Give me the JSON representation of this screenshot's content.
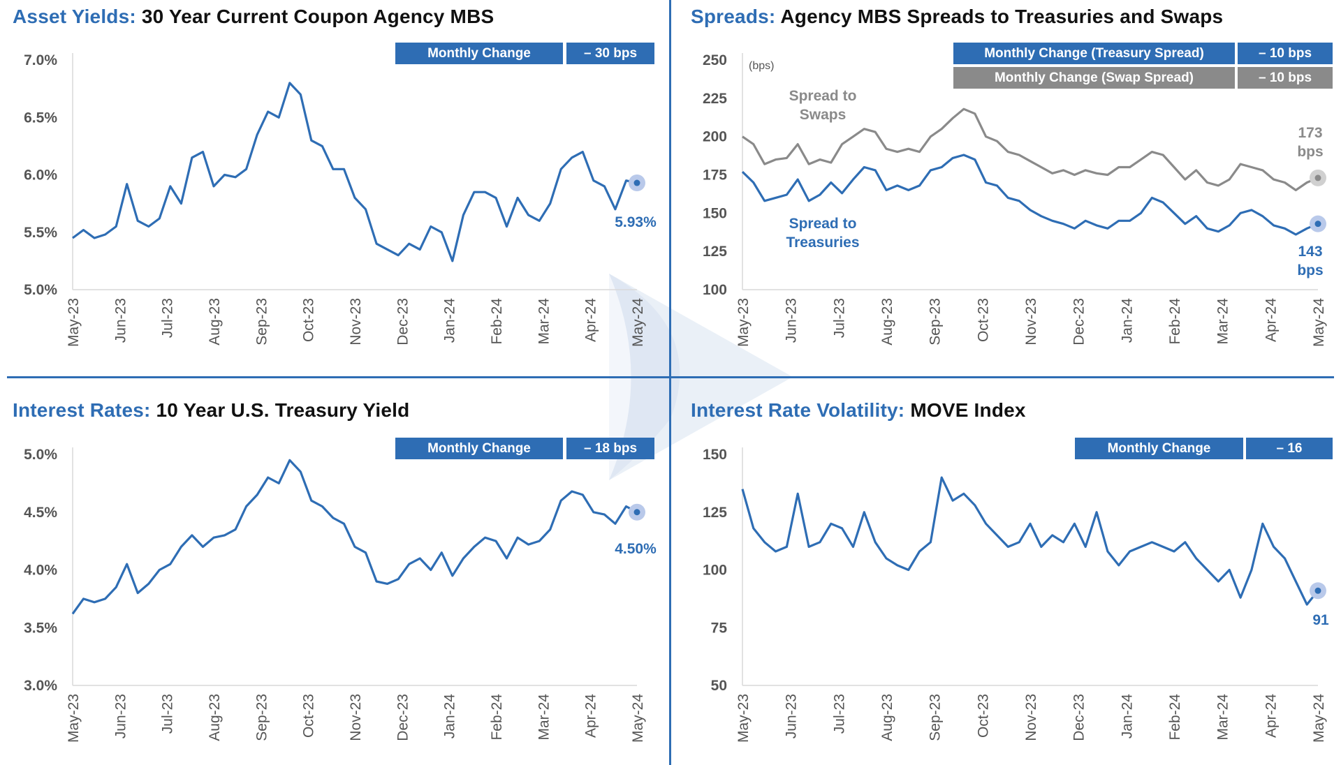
{
  "colors": {
    "accent": "#2E6DB4",
    "gray": "#8A8A8A",
    "tick_text": "#555555",
    "marker_halo_blue": "#B9C9EA",
    "marker_halo_gray": "#D0D0D0"
  },
  "dates": [
    "2023-05-19",
    "2023-05-26",
    "2023-06-02",
    "2023-06-09",
    "2023-06-16",
    "2023-06-23",
    "2023-06-30",
    "2023-07-07",
    "2023-07-14",
    "2023-07-21",
    "2023-07-28",
    "2023-08-04",
    "2023-08-11",
    "2023-08-18",
    "2023-08-25",
    "2023-09-01",
    "2023-09-08",
    "2023-09-15",
    "2023-09-22",
    "2023-09-29",
    "2023-10-06",
    "2023-10-13",
    "2023-10-20",
    "2023-10-27",
    "2023-11-03",
    "2023-11-10",
    "2023-11-17",
    "2023-11-24",
    "2023-12-01",
    "2023-12-08",
    "2023-12-15",
    "2023-12-22",
    "2023-12-29",
    "2024-01-05",
    "2024-01-12",
    "2024-01-19",
    "2024-01-26",
    "2024-02-02",
    "2024-02-09",
    "2024-02-16",
    "2024-02-23",
    "2024-03-01",
    "2024-03-08",
    "2024-03-15",
    "2024-03-22",
    "2024-03-29",
    "2024-04-05",
    "2024-04-12",
    "2024-04-19",
    "2024-04-26",
    "2024-05-03",
    "2024-05-10",
    "2024-05-17"
  ],
  "x_tick_labels": [
    "May-23",
    "Jun-23",
    "Jul-23",
    "Aug-23",
    "Sep-23",
    "Oct-23",
    "Nov-23",
    "Dec-23",
    "Jan-24",
    "Feb-24",
    "Mar-24",
    "Apr-24",
    "May-24"
  ],
  "chart_data": [
    {
      "type": "line",
      "title_highlight": "Asset Yields:",
      "title": "30 Year Current Coupon Agency MBS",
      "monthly_change": {
        "label": "Monthly Change",
        "value": "– 30 bps"
      },
      "ylim": [
        5.0,
        7.0
      ],
      "y_ticks": [
        "5.0%",
        "5.5%",
        "6.0%",
        "6.5%",
        "7.0%"
      ],
      "y_tick_values": [
        5.0,
        5.5,
        6.0,
        6.5,
        7.0
      ],
      "grid": false,
      "series": [
        {
          "color": "#2E6DB4",
          "end_label": "5.93%",
          "values": [
            5.45,
            5.52,
            5.45,
            5.48,
            5.55,
            5.92,
            5.6,
            5.55,
            5.62,
            5.9,
            5.75,
            6.15,
            6.2,
            5.9,
            6.0,
            5.98,
            6.05,
            6.35,
            6.55,
            6.5,
            6.8,
            6.7,
            6.3,
            6.25,
            6.05,
            6.05,
            5.8,
            5.7,
            5.4,
            5.35,
            5.3,
            5.4,
            5.35,
            5.55,
            5.5,
            5.25,
            5.65,
            5.85,
            5.85,
            5.8,
            5.55,
            5.8,
            5.65,
            5.6,
            5.75,
            6.05,
            6.15,
            6.2,
            5.95,
            5.9,
            5.7,
            5.95,
            5.93
          ]
        }
      ]
    },
    {
      "type": "line",
      "title_highlight": "Spreads:",
      "title": "Agency MBS Spreads to Treasuries and Swaps",
      "monthly_change": {
        "label": "Monthly Change (Treasury Spread)",
        "value": "– 10 bps"
      },
      "monthly_change_2": {
        "label": "Monthly Change (Swap Spread)",
        "value": "– 10 bps"
      },
      "unit_label": "(bps)",
      "ylim": [
        100,
        250
      ],
      "y_ticks": [
        "100",
        "125",
        "150",
        "175",
        "200",
        "225",
        "250"
      ],
      "y_tick_values": [
        100,
        125,
        150,
        175,
        200,
        225,
        250
      ],
      "grid": false,
      "series": [
        {
          "name": "Spread to Swaps",
          "color": "#8A8A8A",
          "end_label": "173 bps",
          "values": [
            200,
            195,
            182,
            185,
            186,
            195,
            182,
            185,
            183,
            195,
            200,
            205,
            203,
            192,
            190,
            192,
            190,
            200,
            205,
            212,
            218,
            215,
            200,
            197,
            190,
            188,
            184,
            180,
            176,
            178,
            175,
            178,
            176,
            175,
            180,
            180,
            185,
            190,
            188,
            180,
            172,
            178,
            170,
            168,
            172,
            182,
            180,
            178,
            172,
            170,
            165,
            170,
            173
          ]
        },
        {
          "name": "Spread to Treasuries",
          "color": "#2E6DB4",
          "end_label": "143 bps",
          "values": [
            177,
            170,
            158,
            160,
            162,
            172,
            158,
            162,
            170,
            163,
            172,
            180,
            178,
            165,
            168,
            165,
            168,
            178,
            180,
            186,
            188,
            185,
            170,
            168,
            160,
            158,
            152,
            148,
            145,
            143,
            140,
            145,
            142,
            140,
            145,
            145,
            150,
            160,
            157,
            150,
            143,
            148,
            140,
            138,
            142,
            150,
            152,
            148,
            142,
            140,
            136,
            140,
            143
          ]
        }
      ]
    },
    {
      "type": "line",
      "title_highlight": "Interest Rates:",
      "title": "10 Year U.S. Treasury Yield",
      "monthly_change": {
        "label": "Monthly Change",
        "value": "– 18 bps"
      },
      "ylim": [
        3.0,
        5.0
      ],
      "y_ticks": [
        "3.0%",
        "3.5%",
        "4.0%",
        "4.5%",
        "5.0%"
      ],
      "y_tick_values": [
        3.0,
        3.5,
        4.0,
        4.5,
        5.0
      ],
      "grid": false,
      "series": [
        {
          "color": "#2E6DB4",
          "end_label": "4.50%",
          "values": [
            3.62,
            3.75,
            3.72,
            3.75,
            3.85,
            4.05,
            3.8,
            3.88,
            4.0,
            4.05,
            4.2,
            4.3,
            4.2,
            4.28,
            4.3,
            4.35,
            4.55,
            4.65,
            4.8,
            4.75,
            4.95,
            4.85,
            4.6,
            4.55,
            4.45,
            4.4,
            4.2,
            4.15,
            3.9,
            3.88,
            3.92,
            4.05,
            4.1,
            4.0,
            4.15,
            3.95,
            4.1,
            4.2,
            4.28,
            4.25,
            4.1,
            4.28,
            4.22,
            4.25,
            4.35,
            4.6,
            4.68,
            4.65,
            4.5,
            4.48,
            4.4,
            4.55,
            4.5
          ]
        }
      ]
    },
    {
      "type": "line",
      "title_highlight": "Interest Rate Volatility:",
      "title": "MOVE Index",
      "monthly_change": {
        "label": "Monthly Change",
        "value": "– 16"
      },
      "ylim": [
        50,
        150
      ],
      "y_ticks": [
        "50",
        "75",
        "100",
        "125",
        "150"
      ],
      "y_tick_values": [
        50,
        75,
        100,
        125,
        150
      ],
      "grid": false,
      "series": [
        {
          "color": "#2E6DB4",
          "end_label": "91",
          "values": [
            135,
            118,
            112,
            108,
            110,
            133,
            110,
            112,
            120,
            118,
            110,
            125,
            112,
            105,
            102,
            100,
            108,
            112,
            140,
            130,
            133,
            128,
            120,
            115,
            110,
            112,
            120,
            110,
            115,
            112,
            120,
            110,
            125,
            108,
            102,
            108,
            110,
            112,
            110,
            108,
            112,
            105,
            100,
            95,
            100,
            88,
            100,
            120,
            110,
            105,
            95,
            85,
            91
          ]
        }
      ]
    }
  ]
}
